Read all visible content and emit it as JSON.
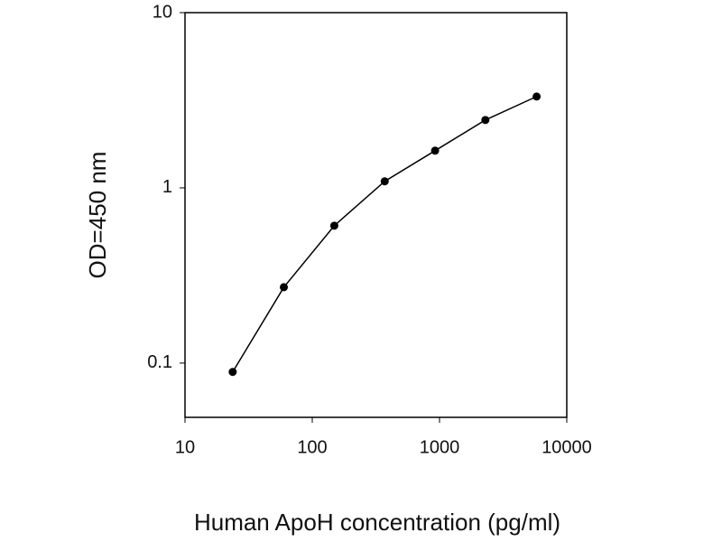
{
  "chart_data": {
    "type": "line",
    "x_label": "Human ApoH concentration (pg/ml)",
    "y_label": "OD=450 nm",
    "x": [
      23.7,
      59.8,
      149,
      371,
      923,
      2293,
      5795
    ],
    "series": [
      {
        "color": "#000000",
        "values": [
          0.089,
          0.271,
          0.608,
          1.09,
          1.63,
          2.44,
          3.32
        ]
      }
    ],
    "xlim": [
      10,
      10000
    ],
    "xticks": [
      10,
      100,
      1000,
      10000
    ],
    "ylim": [
      0.049,
      10
    ],
    "yticks": [
      0.1,
      1,
      10
    ],
    "xscale": "log",
    "yscale": "log",
    "grid": false,
    "markers": true
  }
}
